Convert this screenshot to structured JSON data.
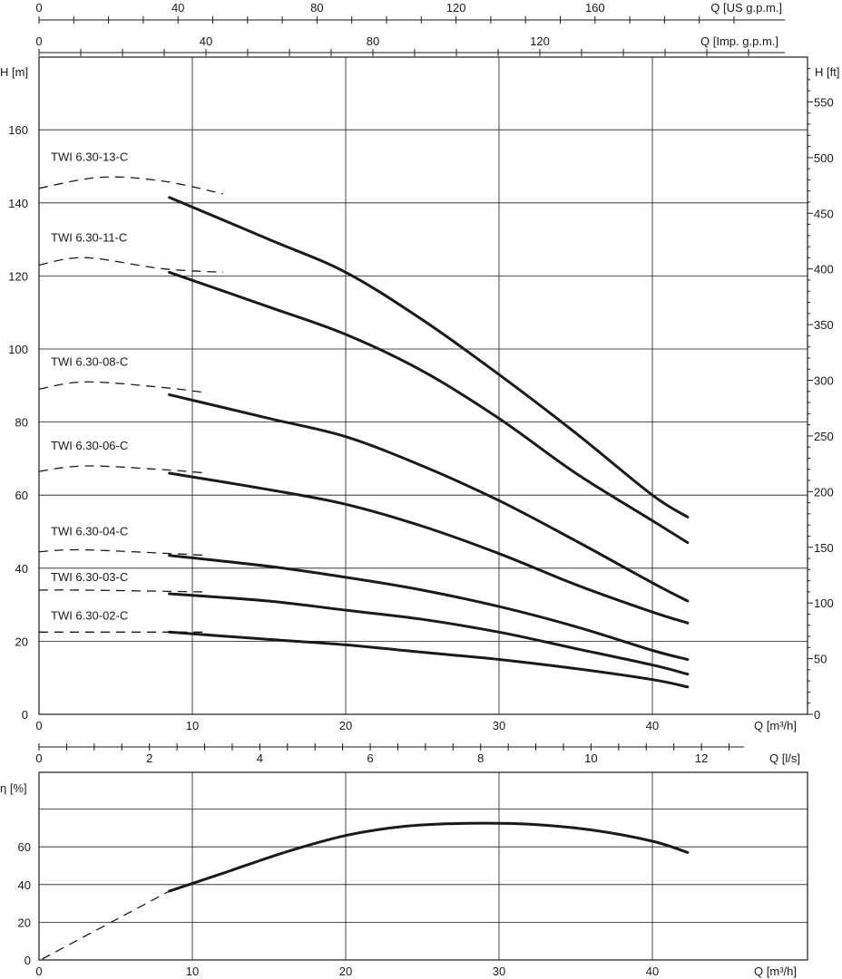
{
  "chart_data": [
    {
      "type": "line",
      "x_axes": {
        "us_gpm": {
          "label": "Q [US g.p.m.]",
          "ticks": [
            "0",
            "40",
            "80",
            "120",
            "160"
          ]
        },
        "imp_gpm": {
          "label": "Q [Imp. g.p.m.]",
          "ticks": [
            "0",
            "40",
            "80",
            "120"
          ]
        },
        "m3h": {
          "label": "Q [m³/h]",
          "ticks": [
            "0",
            "10",
            "20",
            "30",
            "40"
          ]
        }
      },
      "y_axes": {
        "m": {
          "label": "H [m]",
          "ticks": [
            "0",
            "20",
            "40",
            "60",
            "80",
            "100",
            "120",
            "140",
            "160"
          ]
        },
        "ft": {
          "label": "H [ft]",
          "ticks": [
            "0",
            "50",
            "100",
            "150",
            "200",
            "250",
            "300",
            "350",
            "400",
            "450",
            "500",
            "550"
          ]
        }
      },
      "xlim": [
        0,
        50
      ],
      "ylim": [
        0,
        180
      ],
      "grid": true,
      "series": [
        {
          "name": "TWI 6.30-13-C",
          "dashed": [
            [
              0,
              144
            ],
            [
              4,
              147
            ],
            [
              8,
              146
            ],
            [
              12,
              142.5
            ]
          ],
          "solid": [
            [
              8.5,
              141.5
            ],
            [
              15,
              130
            ],
            [
              20,
              121
            ],
            [
              25,
              108
            ],
            [
              30,
              93
            ],
            [
              35,
              77
            ],
            [
              40,
              60
            ],
            [
              42.3,
              54
            ]
          ]
        },
        {
          "name": "TWI 6.30-11-C",
          "dashed": [
            [
              0,
              123
            ],
            [
              3,
              125
            ],
            [
              8,
              122
            ],
            [
              12,
              121
            ]
          ],
          "solid": [
            [
              8.5,
              121
            ],
            [
              15,
              111.5
            ],
            [
              20,
              104
            ],
            [
              25,
              94
            ],
            [
              30,
              81
            ],
            [
              35,
              66
            ],
            [
              40,
              53
            ],
            [
              42.3,
              47
            ]
          ]
        },
        {
          "name": "TWI 6.30-08-C",
          "dashed": [
            [
              0,
              89
            ],
            [
              3,
              91
            ],
            [
              8,
              89.5
            ],
            [
              11,
              88
            ]
          ],
          "solid": [
            [
              8.5,
              87.5
            ],
            [
              15,
              81
            ],
            [
              20,
              76
            ],
            [
              25,
              68
            ],
            [
              30,
              58.5
            ],
            [
              35,
              47.5
            ],
            [
              40,
              36
            ],
            [
              42.3,
              31
            ]
          ]
        },
        {
          "name": "TWI 6.30-06-C",
          "dashed": [
            [
              0,
              66.5
            ],
            [
              3,
              68
            ],
            [
              8,
              67
            ],
            [
              11,
              66
            ]
          ],
          "solid": [
            [
              8.5,
              66
            ],
            [
              15,
              61.5
            ],
            [
              20,
              57.5
            ],
            [
              25,
              51.5
            ],
            [
              30,
              44
            ],
            [
              35,
              35.5
            ],
            [
              40,
              28
            ],
            [
              42.3,
              25
            ]
          ]
        },
        {
          "name": "TWI 6.30-04-C",
          "dashed": [
            [
              0,
              44.5
            ],
            [
              3,
              45
            ],
            [
              11,
              43.5
            ]
          ],
          "solid": [
            [
              8.5,
              43.5
            ],
            [
              15,
              40.5
            ],
            [
              20,
              37.5
            ],
            [
              25,
              34
            ],
            [
              30,
              29.5
            ],
            [
              35,
              24
            ],
            [
              40,
              17.5
            ],
            [
              42.3,
              15
            ]
          ]
        },
        {
          "name": "TWI 6.30-03-C",
          "dashed": [
            [
              0,
              34
            ],
            [
              3,
              34
            ],
            [
              11,
              33.5
            ]
          ],
          "solid": [
            [
              8.5,
              33
            ],
            [
              15,
              31
            ],
            [
              20,
              28.5
            ],
            [
              25,
              26
            ],
            [
              30,
              22.5
            ],
            [
              35,
              18
            ],
            [
              40,
              13.5
            ],
            [
              42.3,
              11
            ]
          ]
        },
        {
          "name": "TWI 6.30-02-C",
          "dashed": [
            [
              0,
              22.5
            ],
            [
              3,
              22.5
            ],
            [
              11,
              22.5
            ]
          ],
          "solid": [
            [
              8.5,
              22.5
            ],
            [
              15,
              20.5
            ],
            [
              20,
              19
            ],
            [
              25,
              17
            ],
            [
              30,
              15
            ],
            [
              35,
              12.5
            ],
            [
              40,
              9.5
            ],
            [
              42.3,
              7.5
            ]
          ]
        }
      ]
    },
    {
      "type": "line",
      "x_axes": {
        "ls": {
          "label": "Q [l/s]",
          "ticks": [
            "0",
            "2",
            "4",
            "6",
            "8",
            "10",
            "12"
          ]
        },
        "m3h": {
          "label": "Q [m³/h]",
          "ticks": [
            "0",
            "10",
            "20",
            "30",
            "40"
          ]
        }
      },
      "y_axis": {
        "label": "η [%]",
        "ticks": [
          "0",
          "20",
          "40",
          "60"
        ]
      },
      "xlim": [
        0,
        50
      ],
      "ylim": [
        0,
        80
      ],
      "grid": true,
      "series": [
        {
          "dashed": [
            [
              0.2,
              0.5
            ],
            [
              8.5,
              36.5
            ]
          ],
          "solid": [
            [
              8.5,
              36.5
            ],
            [
              12,
              46
            ],
            [
              16,
              57
            ],
            [
              20,
              66
            ],
            [
              24,
              71
            ],
            [
              28,
              72.5
            ],
            [
              32,
              72
            ],
            [
              36,
              69
            ],
            [
              40,
              63
            ],
            [
              42.3,
              57
            ]
          ]
        }
      ]
    }
  ]
}
